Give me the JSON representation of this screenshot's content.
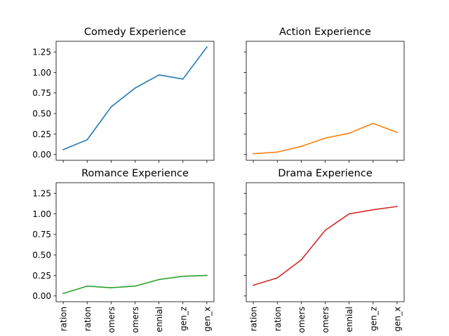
{
  "chart_data": [
    {
      "type": "line",
      "title": "Comedy Experience",
      "color": "#1f77b4",
      "categories": [
        "ration",
        "ration",
        "omers",
        "omers",
        "ennial",
        "gen_z",
        "gen_x"
      ],
      "values": [
        0.06,
        0.18,
        0.58,
        0.81,
        0.97,
        0.92,
        1.31
      ],
      "ylim": [
        -0.07,
        1.38
      ],
      "yticks": [
        "0.00",
        "0.25",
        "0.50",
        "0.75",
        "1.00",
        "1.25"
      ],
      "show_x_tick_labels": false,
      "show_y_tick_labels": true,
      "grid": false
    },
    {
      "type": "line",
      "title": "Action Experience",
      "color": "#ff7f0e",
      "categories": [
        "ration",
        "ration",
        "omers",
        "omers",
        "ennial",
        "gen_z",
        "gen_x"
      ],
      "values": [
        0.01,
        0.03,
        0.1,
        0.2,
        0.26,
        0.38,
        0.27
      ],
      "ylim": [
        -0.07,
        1.38
      ],
      "yticks": [
        "0.00",
        "0.25",
        "0.50",
        "0.75",
        "1.00",
        "1.25"
      ],
      "show_x_tick_labels": false,
      "show_y_tick_labels": false,
      "grid": false
    },
    {
      "type": "line",
      "title": "Romance Experience",
      "color": "#2ca02c",
      "categories": [
        "ration",
        "ration",
        "omers",
        "omers",
        "ennial",
        "gen_z",
        "gen_x"
      ],
      "values": [
        0.03,
        0.12,
        0.1,
        0.12,
        0.2,
        0.24,
        0.25
      ],
      "ylim": [
        -0.07,
        1.38
      ],
      "yticks": [
        "0.00",
        "0.25",
        "0.50",
        "0.75",
        "1.00",
        "1.25"
      ],
      "show_x_tick_labels": true,
      "show_y_tick_labels": true,
      "grid": false
    },
    {
      "type": "line",
      "title": "Drama Experience",
      "color": "#d62728",
      "categories": [
        "ration",
        "ration",
        "omers",
        "omers",
        "ennial",
        "gen_z",
        "gen_x"
      ],
      "values": [
        0.13,
        0.22,
        0.44,
        0.8,
        1.0,
        1.05,
        1.09
      ],
      "ylim": [
        -0.07,
        1.38
      ],
      "yticks": [
        "0.00",
        "0.25",
        "0.50",
        "0.75",
        "1.00",
        "1.25"
      ],
      "show_x_tick_labels": true,
      "show_y_tick_labels": false,
      "grid": false
    }
  ]
}
